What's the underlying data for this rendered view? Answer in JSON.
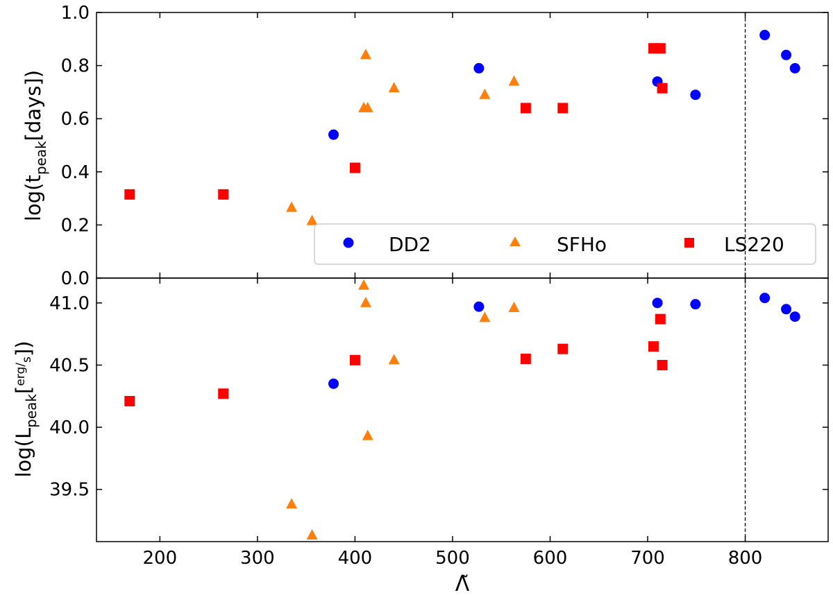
{
  "chart_data": {
    "type": "scatter",
    "layout": "two vertically stacked panels sharing the x-axis",
    "xlabel": "Λ̃",
    "xlim": [
      135,
      885
    ],
    "x_ticks": [
      200,
      300,
      400,
      500,
      600,
      700,
      800
    ],
    "vertical_reference_line": {
      "x": 800,
      "style": "dashed",
      "color": "#000000"
    },
    "legend": {
      "placement": "lower-right of top panel, three columns",
      "entries": [
        {
          "name": "DD2",
          "marker": "circle",
          "color": "#0000ff"
        },
        {
          "name": "SFHo",
          "marker": "triangle",
          "color": "#ff7f0e"
        },
        {
          "name": "LS220",
          "marker": "square",
          "color": "#ff0000"
        }
      ]
    },
    "panels": [
      {
        "id": "top",
        "ylabel": {
          "prefix": "log(",
          "base": "t",
          "subscript": "peak",
          "suffix": "[days])"
        },
        "ylim": [
          0.0,
          1.0
        ],
        "y_ticks": [
          0.0,
          0.2,
          0.4,
          0.6,
          0.8,
          1.0
        ],
        "y_tick_labels": [
          "0.0",
          "0.2",
          "0.4",
          "0.6",
          "0.8",
          "1.0"
        ],
        "series": [
          {
            "name": "DD2",
            "marker": "circle",
            "color": "#0000ff",
            "points": [
              [
                378,
                0.54
              ],
              [
                527,
                0.79
              ],
              [
                710,
                0.74
              ],
              [
                749,
                0.69
              ],
              [
                820,
                0.915
              ],
              [
                842,
                0.84
              ],
              [
                851,
                0.79
              ]
            ]
          },
          {
            "name": "SFHo",
            "marker": "triangle",
            "color": "#ff7f0e",
            "points": [
              [
                335,
                0.265
              ],
              [
                356,
                0.215
              ],
              [
                409,
                0.64
              ],
              [
                411,
                0.84
              ],
              [
                413,
                0.64
              ],
              [
                440,
                0.715
              ],
              [
                533,
                0.69
              ],
              [
                563,
                0.74
              ]
            ]
          },
          {
            "name": "LS220",
            "marker": "square",
            "color": "#ff0000",
            "points": [
              [
                169,
                0.315
              ],
              [
                265,
                0.315
              ],
              [
                400,
                0.415
              ],
              [
                575,
                0.64
              ],
              [
                613,
                0.64
              ],
              [
                706,
                0.865
              ],
              [
                713,
                0.865
              ],
              [
                715,
                0.715
              ]
            ]
          }
        ]
      },
      {
        "id": "bottom",
        "ylabel": {
          "prefix": "log(",
          "base": "L",
          "subscript": "peak",
          "unit_num": "erg",
          "unit_den": "s",
          "suffix": ")"
        },
        "ylim": [
          39.08,
          41.2
        ],
        "y_ticks": [
          39.5,
          40.0,
          40.5,
          41.0
        ],
        "y_tick_labels": [
          "39.5",
          "40.0",
          "40.5",
          "41.0"
        ],
        "series": [
          {
            "name": "DD2",
            "marker": "circle",
            "color": "#0000ff",
            "points": [
              [
                378,
                40.35
              ],
              [
                527,
                40.97
              ],
              [
                710,
                41.0
              ],
              [
                749,
                40.99
              ],
              [
                820,
                41.04
              ],
              [
                842,
                40.95
              ],
              [
                851,
                40.89
              ]
            ]
          },
          {
            "name": "SFHo",
            "marker": "triangle",
            "color": "#ff7f0e",
            "points": [
              [
                335,
                39.38
              ],
              [
                356,
                39.13
              ],
              [
                409,
                41.14
              ],
              [
                411,
                41.0
              ],
              [
                413,
                39.93
              ],
              [
                440,
                40.54
              ],
              [
                533,
                40.88
              ],
              [
                563,
                40.96
              ]
            ]
          },
          {
            "name": "LS220",
            "marker": "square",
            "color": "#ff0000",
            "points": [
              [
                169,
                40.21
              ],
              [
                265,
                40.27
              ],
              [
                400,
                40.54
              ],
              [
                575,
                40.55
              ],
              [
                613,
                40.63
              ],
              [
                706,
                40.65
              ],
              [
                713,
                40.87
              ],
              [
                715,
                40.5
              ]
            ]
          }
        ]
      }
    ]
  }
}
